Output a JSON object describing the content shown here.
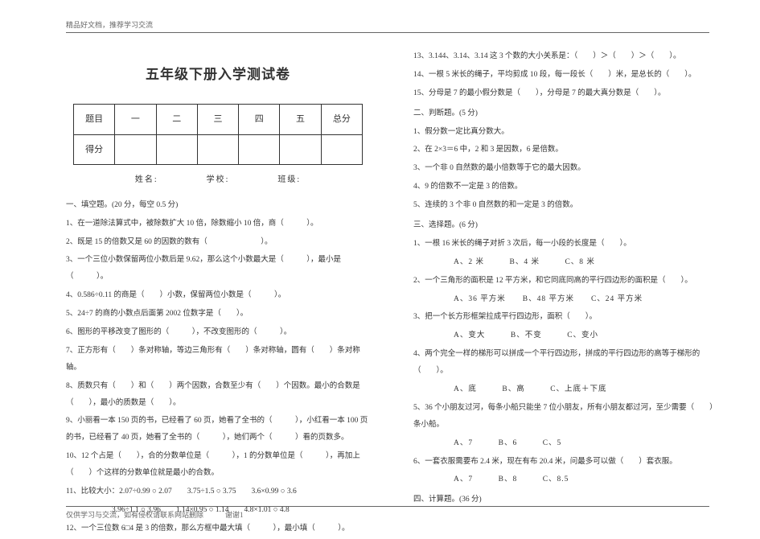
{
  "meta": {
    "header": "精品好文档，推荐学习交流",
    "footer1": "仅供学习与交流，如有侵权请联系网站删除",
    "footer2": "谢谢1"
  },
  "title": "五年级下册入学测试卷",
  "score_table": {
    "r1c0": "题目",
    "r1c1": "一",
    "r1c2": "二",
    "r1c3": "三",
    "r1c4": "四",
    "r1c5": "五",
    "r1c6": "总分",
    "r2c0": "得分"
  },
  "info": "姓名:　　　　　学校:　　　　　班级:",
  "left": {
    "s1": "一、填空题。(20 分，每空 0.5 分)",
    "q1": "1、在一道除法算式中，被除数扩大 10 倍，除数缩小 10 倍，商（　　　）。",
    "q2": "2、既是 15 的倍数又是 60 的因数的数有（　　　　　　　）。",
    "q3": "3、一个三位小数保留两位小数后是 9.62，那么这个小数最大是（　　　），最小是（　　　）。",
    "q4": "4、0.586÷0.11 的商是（　　）小数，保留两位小数是（　　　）。",
    "q5": "5、24÷7 的商的小数点后面第 2002 位数字是（　　）。",
    "q6": "6、图形的平移改变了图形的（　　　），不改变图形的（　　　）。",
    "q7": "7、正方形有（　　）条对称轴，等边三角形有（　　）条对称轴，圆有（　　）条对称轴。",
    "q8": "8、质数只有（　　）和（　　）两个因数，合数至少有（　　）个因数。最小的合数是（　　），最小的质数是（　　）。",
    "q9": "9、小丽看一本 150 页的书，已经看了 60 页，她看了全书的（　　　），小红看一本 100 页的书，已经看了 40 页，她看了全书的（　　　），她们两个（　　　）看的页数多。",
    "q10": "10、12 个占是（　　），合的分数单位是（　　　），1 的分数单位是（　　　），再加上（　　）个这样的分数单位就是最小的合数。",
    "q11a": "11、比较大小：2.07÷0.99 ○ 2.07　　3.75÷1.5 ○ 3.75　　3.6×0.99 ○ 3.6",
    "q11b": "　　　　　　3.96÷1.1 ○ 3.96　　1.14×0.95 ○ 1.14　　4.8×1.01 ○ 4.8",
    "q12": "12、一个三位数 6□4 是 3 的倍数，那么方框中最大填（　　　），最小填（　　　）。"
  },
  "right": {
    "q13": "13、3.144、3.14、3.14 这 3 个数的大小关系是：（　　）＞（　　）＞（　　）。",
    "q14": "14、一根 5 米长的绳子，平均剪成 10 段，每一段长（　　）米，是总长的（　　）。",
    "q15": "15、分母是 7 的最小假分数是（　　），分母是 7 的最大真分数是（　　）。",
    "s2": "二、判断题。(5 分)",
    "j1": "1、假分数一定比真分数大。",
    "j2": "2、在 2×3＝6 中，2 和 3 是因数，6 是倍数。",
    "j3": "3、一个非 0 自然数的最小倍数等于它的最大因数。",
    "j4": "4、9 的倍数不一定是 3 的倍数。",
    "j5": "5、连续的 3 个非 0 自然数的和一定是 3 的倍数。",
    "s3": "三、选择题。(6 分)",
    "c1": "1、一根 16 米长的绳子对折 3 次后，每一小段的长度是（　　）。",
    "c1o": "A、2 米　　　B、4 米　　　C、8 米",
    "c2": "2、一个三角形的面积是 12 平方米，和它同底同高的平行四边形的面积是（　　）。",
    "c2o": "A、36 平方米　　B、48 平方米　　C、24 平方米",
    "c3": "3、把一个长方形框架拉成平行四边形，面积（　　）。",
    "c3o": "A、变大　　　B、不变　　　C、变小",
    "c4": "4、两个完全一样的梯形可以拼成一个平行四边形，拼成的平行四边形的高等于梯形的（　　）。",
    "c4o": "A、底　　　B、高　　　C、上底＋下底",
    "c5": "5、36 个小朋友过河，每条小船只能坐 7 位小朋友，所有小朋友都过河，至少需要（　　）条小船。",
    "c5o": "A、7　　　B、6　　　C、5",
    "c6": "6、一套衣服需要布 2.4 米，现在有布 20.4 米，问最多可以做（　　）套衣服。",
    "c6o": "A、7　　　B、8　　　C、8.5",
    "s4": "四、计算题。(36 分)"
  }
}
